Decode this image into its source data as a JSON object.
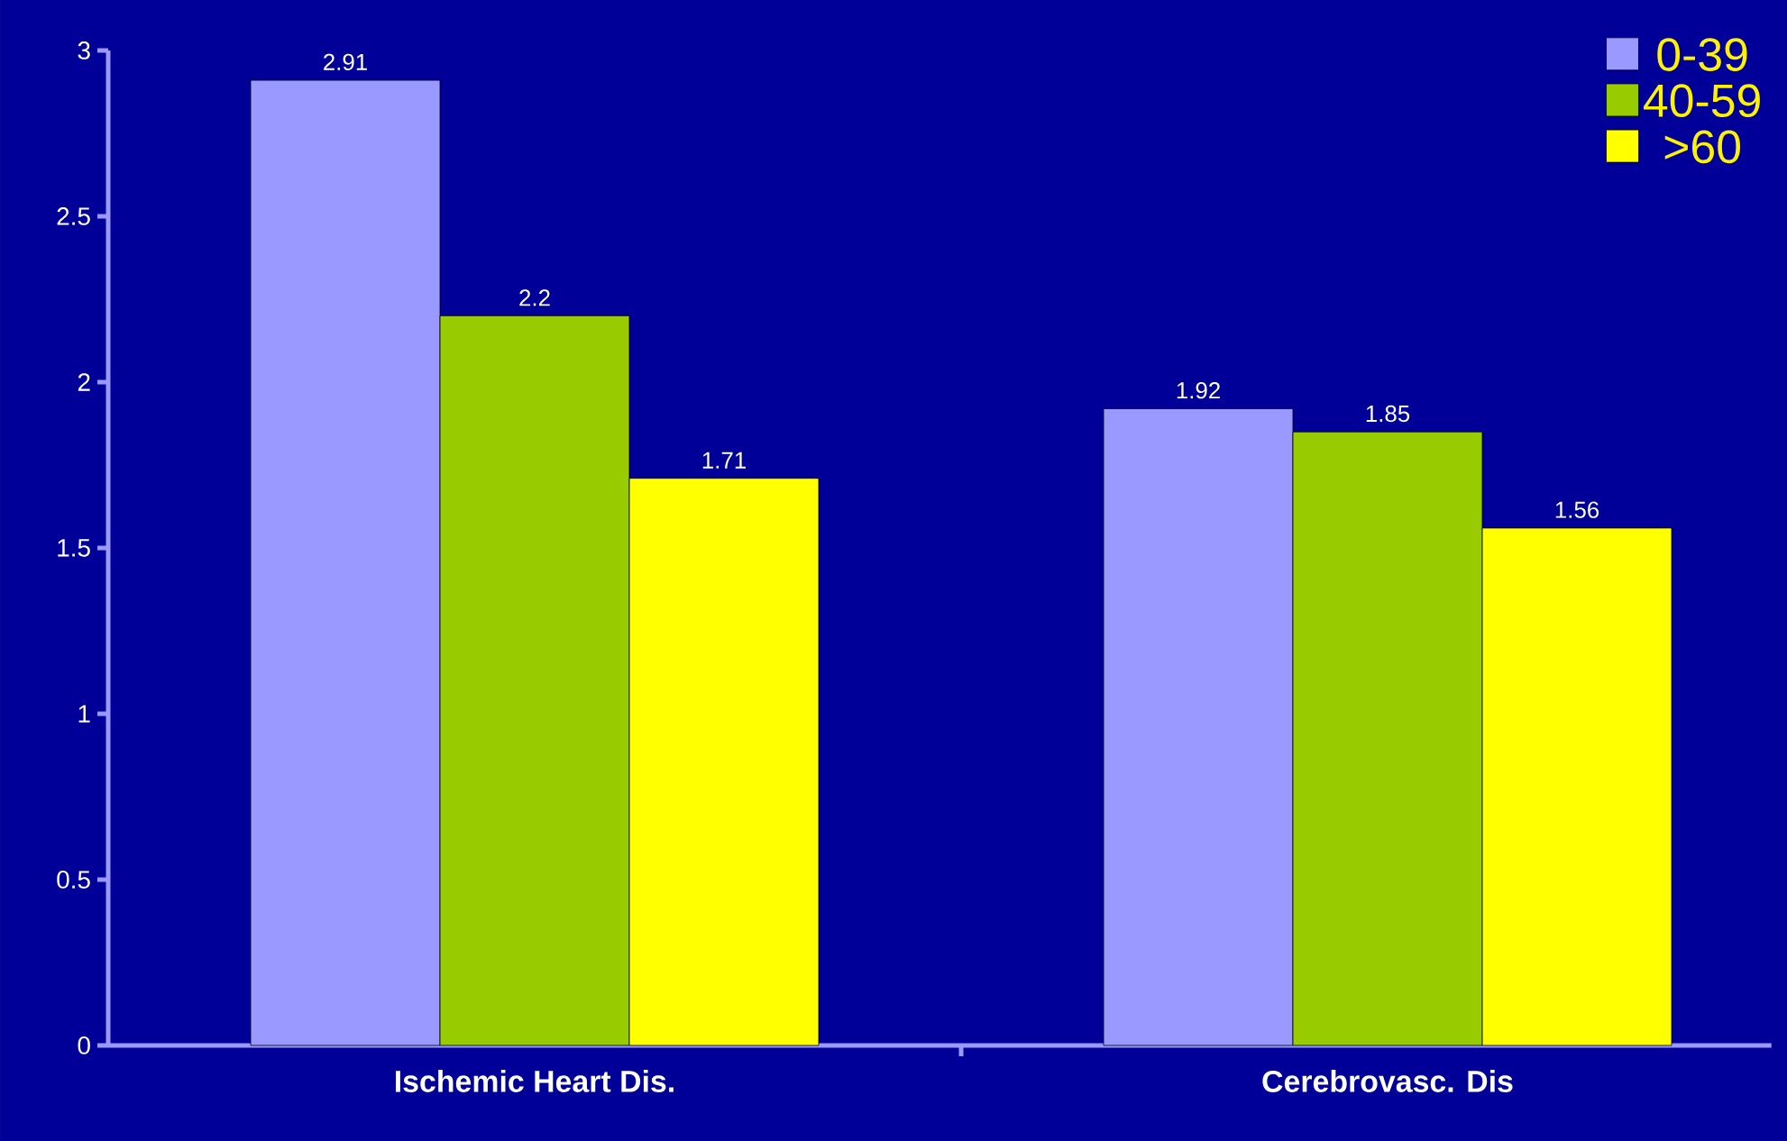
{
  "chart_data": {
    "type": "bar",
    "categories": [
      "Ischemic Heart Dis.",
      "Cerebrovasc. Dis"
    ],
    "series": [
      {
        "name": "0-39",
        "color": "#9999ff",
        "values": [
          2.91,
          1.92
        ]
      },
      {
        "name": "40-59",
        "color": "#99cc00",
        "values": [
          2.2,
          1.85
        ]
      },
      {
        "name": ">60",
        "color": "#ffff00",
        "values": [
          1.71,
          1.56
        ]
      }
    ],
    "ylim": [
      0,
      3
    ],
    "yticks": [
      0,
      0.5,
      1,
      1.5,
      2,
      2.5,
      3
    ],
    "data_labels": true,
    "legend": "top right",
    "grid": false
  }
}
